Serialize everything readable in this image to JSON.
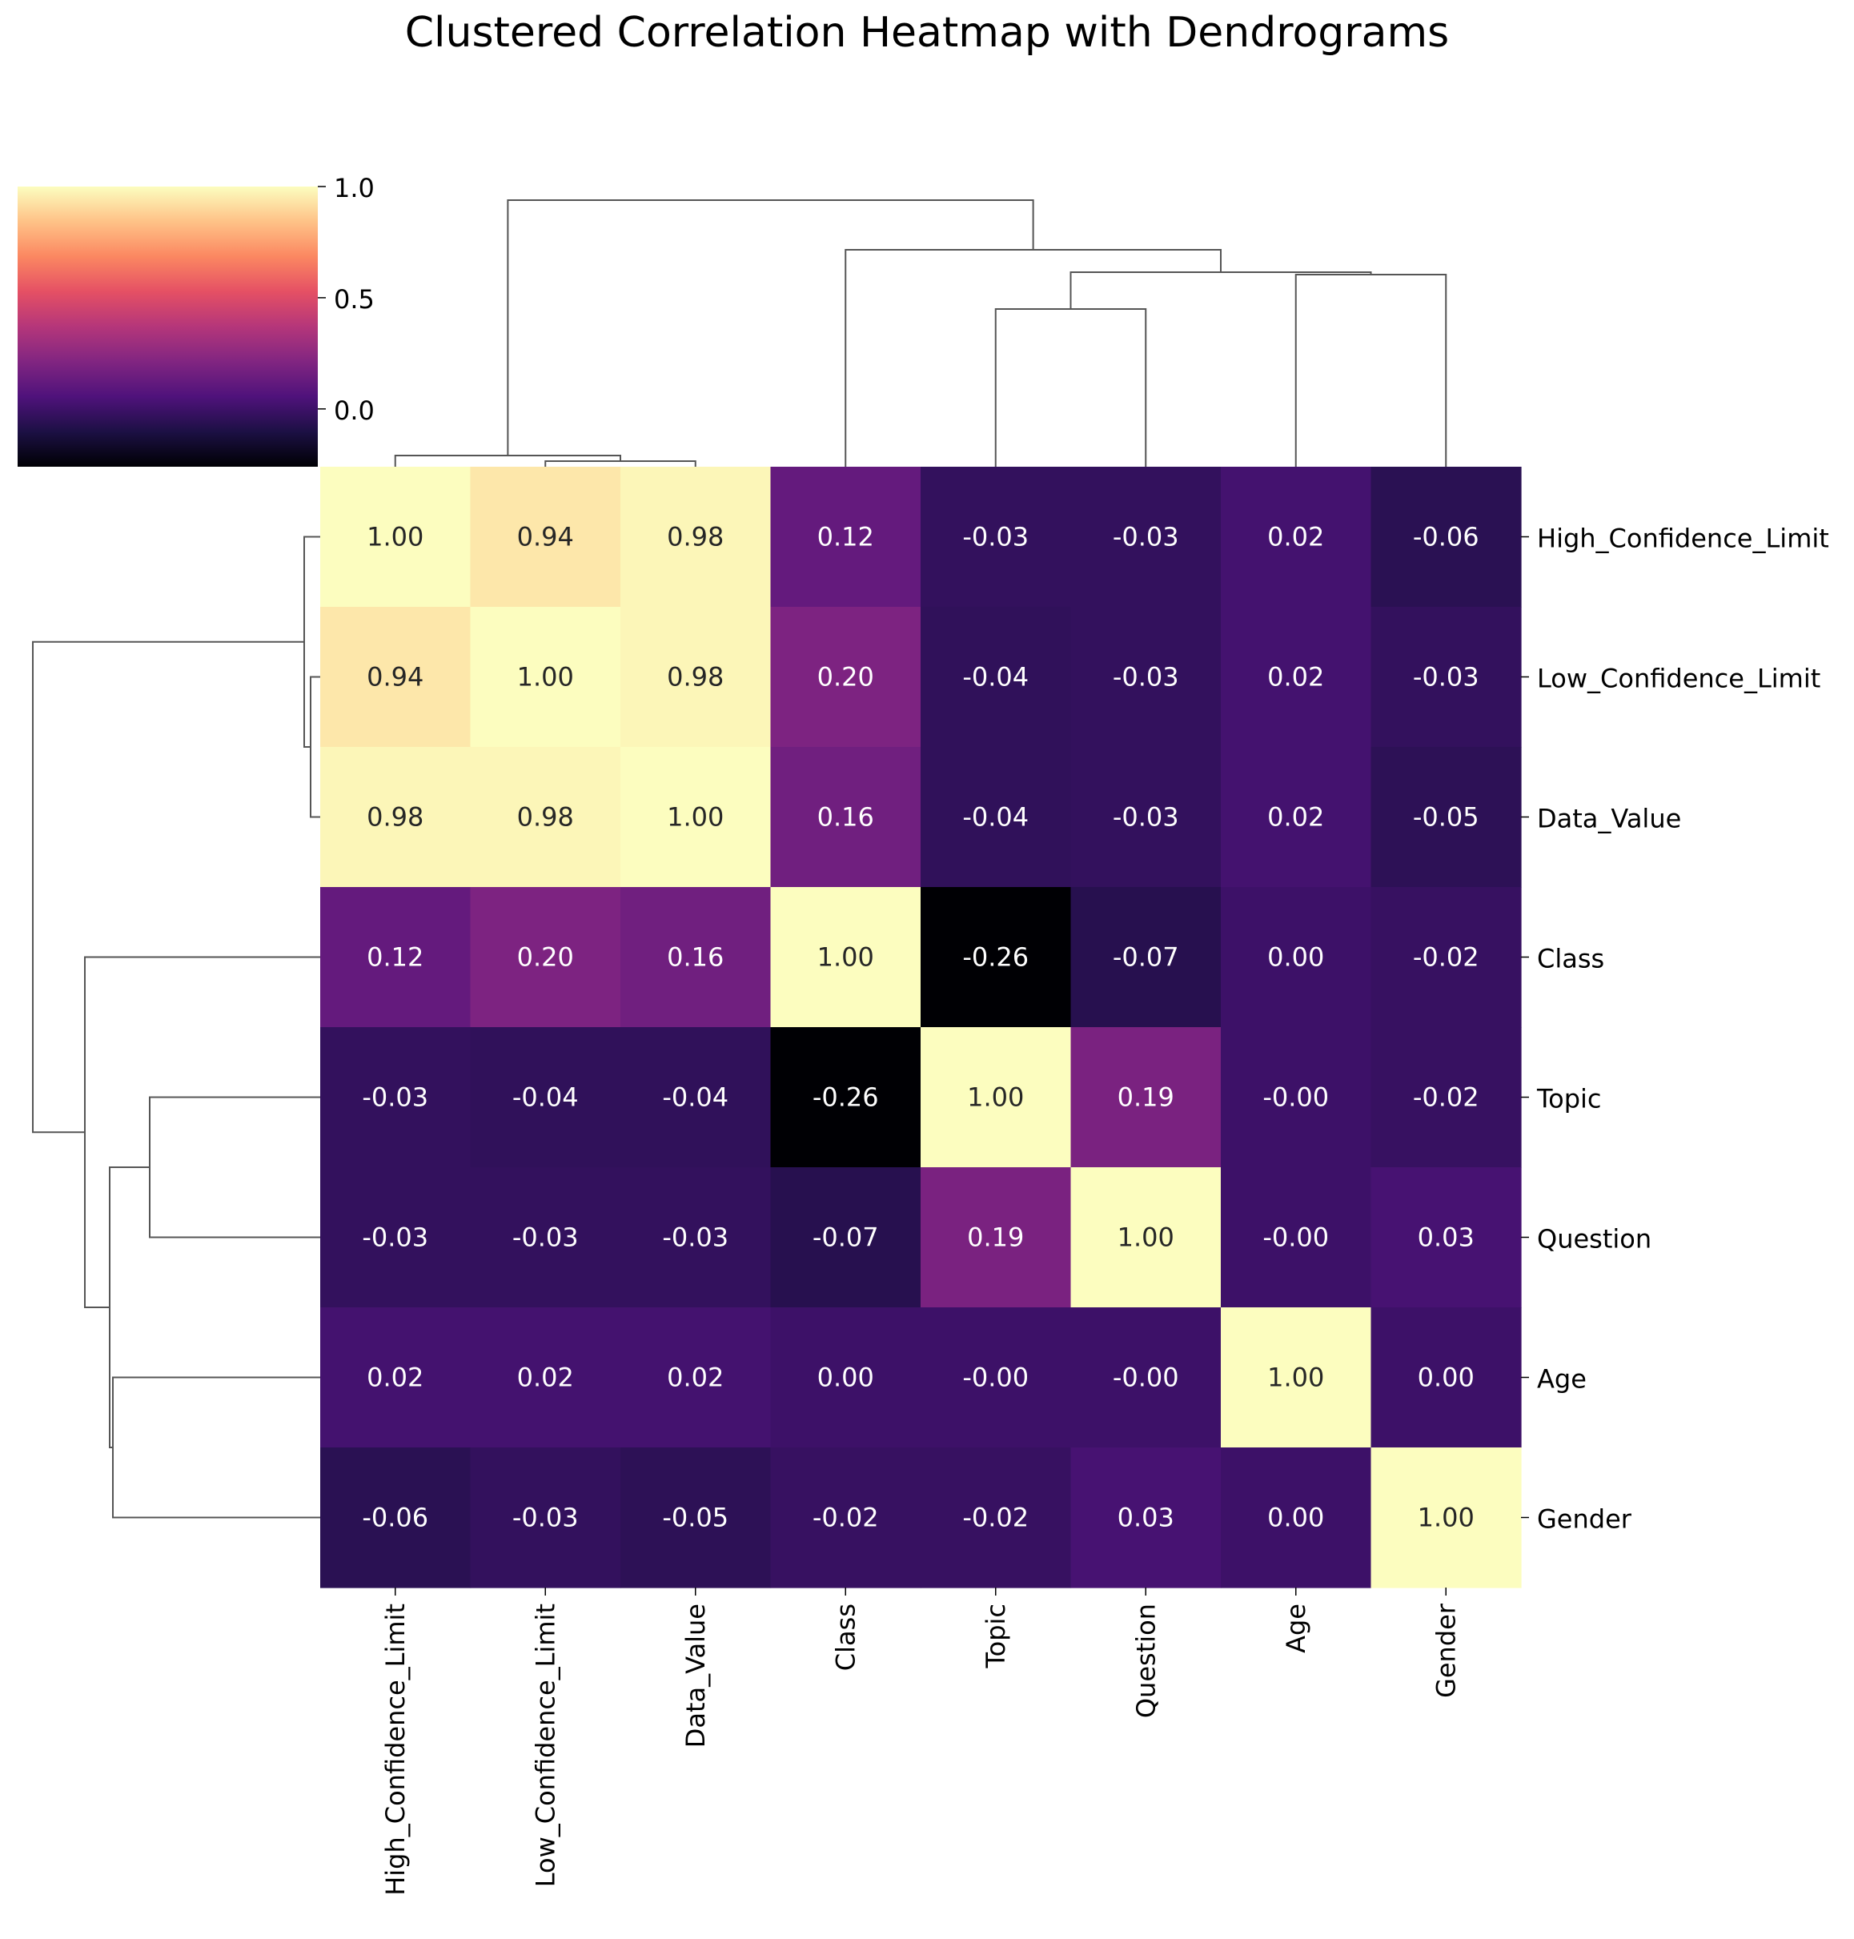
{
  "chart_data": {
    "type": "heatmap",
    "title": "Clustered Correlation Heatmap with Dendrograms",
    "variables": [
      "High_Confidence_Limit",
      "Low_Confidence_Limit",
      "Data_Value",
      "Class",
      "Topic",
      "Question",
      "Age",
      "Gender"
    ],
    "matrix": [
      [
        1.0,
        0.94,
        0.98,
        0.12,
        -0.03,
        -0.03,
        0.02,
        -0.06
      ],
      [
        0.94,
        1.0,
        0.98,
        0.2,
        -0.04,
        -0.03,
        0.02,
        -0.03
      ],
      [
        0.98,
        0.98,
        1.0,
        0.16,
        -0.04,
        -0.03,
        0.02,
        -0.05
      ],
      [
        0.12,
        0.2,
        0.16,
        1.0,
        -0.26,
        -0.07,
        0.0,
        -0.02
      ],
      [
        -0.03,
        -0.04,
        -0.04,
        -0.26,
        1.0,
        0.19,
        -0.0,
        -0.02
      ],
      [
        -0.03,
        -0.03,
        -0.03,
        -0.07,
        0.19,
        1.0,
        -0.0,
        0.03
      ],
      [
        0.02,
        0.02,
        0.02,
        0.0,
        -0.0,
        -0.0,
        1.0,
        0.0
      ],
      [
        -0.06,
        -0.03,
        -0.05,
        -0.02,
        -0.02,
        0.03,
        0.0,
        1.0
      ]
    ],
    "cell_labels": [
      [
        "1.00",
        "0.94",
        "0.98",
        "0.12",
        "-0.03",
        "-0.03",
        "0.02",
        "-0.06"
      ],
      [
        "0.94",
        "1.00",
        "0.98",
        "0.20",
        "-0.04",
        "-0.03",
        "0.02",
        "-0.03"
      ],
      [
        "0.98",
        "0.98",
        "1.00",
        "0.16",
        "-0.04",
        "-0.03",
        "0.02",
        "-0.05"
      ],
      [
        "0.12",
        "0.20",
        "0.16",
        "1.00",
        "-0.26",
        "-0.07",
        "0.00",
        "-0.02"
      ],
      [
        "-0.03",
        "-0.04",
        "-0.04",
        "-0.26",
        "1.00",
        "0.19",
        "-0.00",
        "-0.02"
      ],
      [
        "-0.03",
        "-0.03",
        "-0.03",
        "-0.07",
        "0.19",
        "1.00",
        "-0.00",
        "0.03"
      ],
      [
        "0.02",
        "0.02",
        "0.02",
        "0.00",
        "-0.00",
        "-0.00",
        "1.00",
        "0.00"
      ],
      [
        "-0.06",
        "-0.03",
        "-0.05",
        "-0.02",
        "-0.02",
        "0.03",
        "0.00",
        "1.00"
      ]
    ],
    "colormap": "magma",
    "color_range": [
      -0.26,
      1.0
    ],
    "colorbar": {
      "ticks": [
        0.0,
        0.5,
        1.0
      ],
      "tick_labels": [
        "0.0",
        "0.5",
        "1.0"
      ],
      "placement": "top-left"
    },
    "dendrograms": [
      "top",
      "left"
    ]
  }
}
